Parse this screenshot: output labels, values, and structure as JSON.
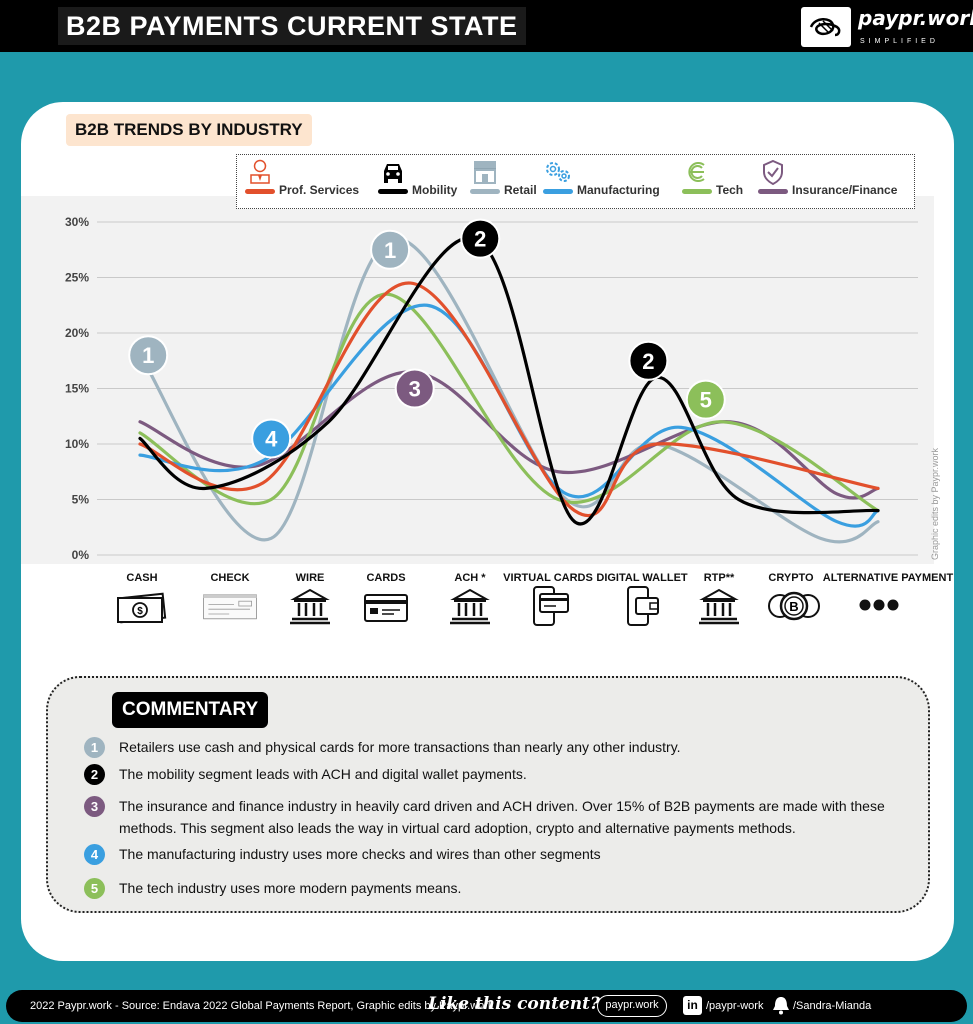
{
  "header": {
    "title": "B2B PAYMENTS CURRENT STATE",
    "brand": "paypr.work",
    "brand_sub": "SIMPLIFIED"
  },
  "section_title": "B2B TRENDS BY INDUSTRY",
  "chart_data": {
    "type": "line",
    "categories": [
      "CASH",
      "CHECK",
      "WIRE",
      "CARDS",
      "ACH *",
      "VIRTUAL CARDS",
      "DIGITAL WALLET",
      "RTP**",
      "CRYPTO",
      "ALTERNATIVE PAYMENT"
    ],
    "ylim": [
      0,
      30
    ],
    "yticks": [
      "0%",
      "5%",
      "10%",
      "15%",
      "20%",
      "25%",
      "30%"
    ],
    "grid": true,
    "legend_position": "top",
    "series": [
      {
        "name": "Prof. Services",
        "color": "#e2502c",
        "x": [
          0,
          1.5,
          3.3,
          5.3,
          6.3,
          9
        ],
        "values": [
          10,
          6.5,
          24.5,
          4,
          10,
          6
        ]
      },
      {
        "name": "Mobility",
        "color": "#000000",
        "x": [
          0,
          0.8,
          2.3,
          4.1,
          5.3,
          6.3,
          7.3,
          9
        ],
        "values": [
          10.5,
          6,
          12,
          28.5,
          3,
          16,
          5,
          4
        ]
      },
      {
        "name": "Retail",
        "color": "#9fb4c0",
        "x": [
          0,
          1.6,
          3.1,
          5.2,
          6.3,
          8.3,
          9
        ],
        "values": [
          18,
          1.5,
          28.5,
          5,
          10,
          1.5,
          3
        ]
      },
      {
        "name": "Manufacturing",
        "color": "#3a9fe0",
        "x": [
          0,
          1.5,
          3.5,
          5.2,
          6.6,
          8.5,
          9
        ],
        "values": [
          9,
          8.5,
          22.5,
          5.5,
          11.5,
          3,
          4
        ]
      },
      {
        "name": "Tech",
        "color": "#8cbf5a",
        "x": [
          0,
          1.6,
          3,
          5.1,
          7.1,
          9
        ],
        "values": [
          11,
          5,
          23.5,
          5,
          12,
          4
        ]
      },
      {
        "name": "Insurance/Finance",
        "color": "#7c5a80",
        "x": [
          0,
          1.4,
          3.3,
          5.1,
          7.2,
          8.5,
          9
        ],
        "values": [
          12,
          8,
          16.5,
          7.5,
          12,
          5.5,
          6
        ]
      }
    ],
    "markers": [
      {
        "label": "1",
        "color": "#9fb4c0",
        "x": 0.1,
        "y": 18
      },
      {
        "label": "1",
        "color": "#9fb4c0",
        "x": 3.05,
        "y": 27.5
      },
      {
        "label": "2",
        "color": "#000000",
        "x": 4.15,
        "y": 28.5
      },
      {
        "label": "2",
        "color": "#000000",
        "x": 6.2,
        "y": 17.5
      },
      {
        "label": "3",
        "color": "#7c5a80",
        "x": 3.35,
        "y": 15
      },
      {
        "label": "4",
        "color": "#3a9fe0",
        "x": 1.6,
        "y": 10.5
      },
      {
        "label": "5",
        "color": "#8cbf5a",
        "x": 6.9,
        "y": 14
      }
    ]
  },
  "credit": "Graphic edits by Paypr.work",
  "commentary": {
    "title": "COMMENTARY",
    "notes": [
      {
        "num": "1",
        "color": "#9fb4c0",
        "text": "Retailers use cash and physical cards for more transactions than nearly any other industry."
      },
      {
        "num": "2",
        "color": "#000000",
        "text": "The mobility segment leads with ACH and digital wallet payments."
      },
      {
        "num": "3",
        "color": "#7c5a80",
        "text": "The insurance and finance industry in heavily card driven and ACH driven. Over 15% of B2B payments are made with these methods. This segment also leads the way in virtual card adoption, crypto and alternative payments methods."
      },
      {
        "num": "4",
        "color": "#3a9fe0",
        "text": "The manufacturing industry uses more checks and wires than other segments"
      },
      {
        "num": "5",
        "color": "#8cbf5a",
        "text": "The tech industry uses more modern payments means."
      }
    ]
  },
  "footer": {
    "source": "2022 Paypr.work - Source: Endava 2022 Global Payments Report, Graphic edits by Paypr.work",
    "cta": "Like this content?",
    "site_button": "paypr.work",
    "linkedin_icon": "in",
    "linkedin": "/paypr-work",
    "notify": "/Sandra-Mianda"
  },
  "icons": [
    "user-icon",
    "car-icon",
    "store-icon",
    "gears-icon",
    "tech-logo-icon",
    "shield-check-icon",
    "banknote-icon",
    "check-icon",
    "bank-icon",
    "card-icon",
    "phone-card-icon",
    "wallet-phone-icon",
    "coins-icon",
    "dots-icon",
    "linkedin-icon",
    "bell-icon"
  ]
}
